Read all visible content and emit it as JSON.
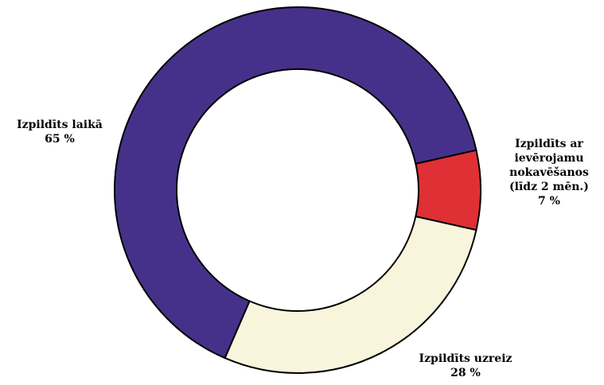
{
  "chart_data": {
    "type": "donut",
    "categories": [
      "Izpildīts laikā",
      "Izpildīts ar ievērojamu nokavēšanos (līdz 2 mēn.)",
      "Izpildīts uzreiz"
    ],
    "values": [
      65,
      7,
      28
    ],
    "value_labels": [
      "65 %",
      "7 %",
      "28 %"
    ],
    "colors": [
      "#46318a",
      "#df3035",
      "#f8f5dc"
    ]
  }
}
